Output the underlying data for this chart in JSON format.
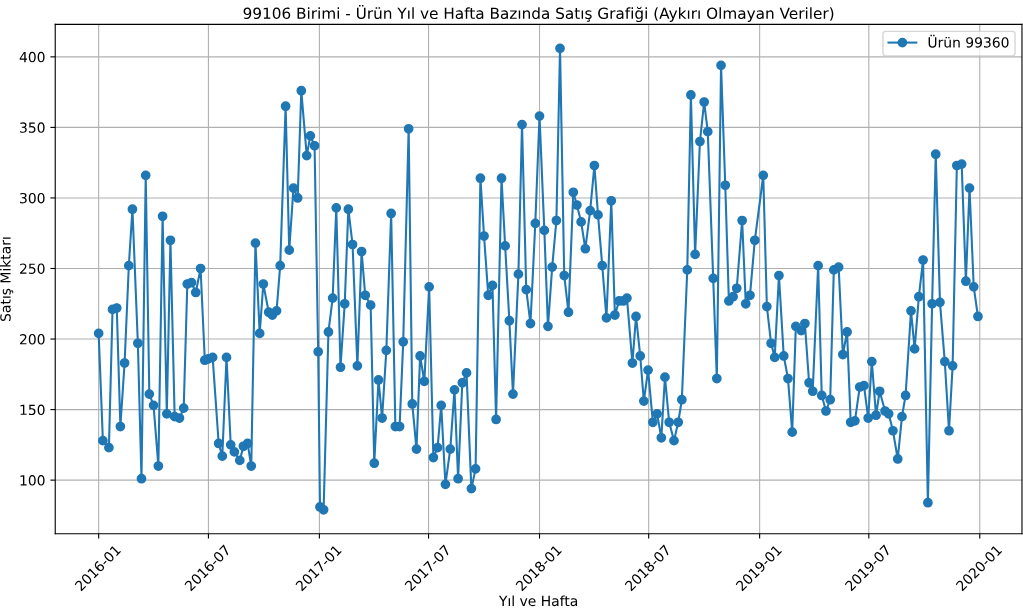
{
  "chart_data": {
    "type": "line",
    "title": "99106 Birimi - Ürün Yıl ve Hafta Bazında Satış Grafiği (Aykırı Olmayan Veriler)",
    "xlabel": "Yıl ve Hafta",
    "ylabel": "Satış Miktarı",
    "x": [
      "2016-01-01",
      "2016-01-08",
      "2016-01-18",
      "2016-01-24",
      "2016-01-31",
      "2016-02-06",
      "2016-02-13",
      "2016-02-20",
      "2016-02-26",
      "2016-03-06",
      "2016-03-12",
      "2016-03-19",
      "2016-03-25",
      "2016-04-01",
      "2016-04-09",
      "2016-04-16",
      "2016-04-23",
      "2016-04-29",
      "2016-05-06",
      "2016-05-14",
      "2016-05-21",
      "2016-05-27",
      "2016-06-03",
      "2016-06-10",
      "2016-06-18",
      "2016-06-25",
      "2016-07-01",
      "2016-07-08",
      "2016-07-18",
      "2016-07-24",
      "2016-07-31",
      "2016-08-07",
      "2016-08-13",
      "2016-08-22",
      "2016-08-28",
      "2016-09-04",
      "2016-09-10",
      "2016-09-17",
      "2016-09-24",
      "2016-09-30",
      "2016-10-09",
      "2016-10-15",
      "2016-10-22",
      "2016-10-28",
      "2016-11-06",
      "2016-11-12",
      "2016-11-19",
      "2016-11-26",
      "2016-12-02",
      "2016-12-11",
      "2016-12-17",
      "2016-12-24",
      "2016-12-30",
      "2017-01-02",
      "2017-01-08",
      "2017-01-16",
      "2017-01-23",
      "2017-01-29",
      "2017-02-05",
      "2017-02-12",
      "2017-02-18",
      "2017-02-25",
      "2017-03-05",
      "2017-03-12",
      "2017-03-18",
      "2017-03-27",
      "2017-04-02",
      "2017-04-09",
      "2017-04-15",
      "2017-04-22",
      "2017-04-30",
      "2017-05-07",
      "2017-05-14",
      "2017-05-20",
      "2017-05-29",
      "2017-06-04",
      "2017-06-11",
      "2017-06-17",
      "2017-06-24",
      "2017-07-02",
      "2017-07-09",
      "2017-07-16",
      "2017-07-22",
      "2017-07-29",
      "2017-08-06",
      "2017-08-13",
      "2017-08-19",
      "2017-08-26",
      "2017-09-02",
      "2017-09-10",
      "2017-09-17",
      "2017-09-25",
      "2017-10-01",
      "2017-10-08",
      "2017-10-15",
      "2017-10-21",
      "2017-10-30",
      "2017-11-05",
      "2017-11-12",
      "2017-11-18",
      "2017-11-27",
      "2017-12-03",
      "2017-12-10",
      "2017-12-17",
      "2017-12-25",
      "2018-01-01",
      "2018-01-09",
      "2018-01-15",
      "2018-01-22",
      "2018-01-29",
      "2018-02-04",
      "2018-02-11",
      "2018-02-18",
      "2018-02-26",
      "2018-03-04",
      "2018-03-11",
      "2018-03-18",
      "2018-03-26",
      "2018-04-02",
      "2018-04-08",
      "2018-04-15",
      "2018-04-22",
      "2018-04-30",
      "2018-05-06",
      "2018-05-13",
      "2018-05-20",
      "2018-05-26",
      "2018-06-04",
      "2018-06-10",
      "2018-06-17",
      "2018-06-23",
      "2018-06-30",
      "2018-07-08",
      "2018-07-15",
      "2018-07-22",
      "2018-07-28",
      "2018-08-04",
      "2018-08-12",
      "2018-08-19",
      "2018-08-25",
      "2018-09-03",
      "2018-09-09",
      "2018-09-16",
      "2018-09-24",
      "2018-10-01",
      "2018-10-07",
      "2018-10-16",
      "2018-10-22",
      "2018-10-29",
      "2018-11-05",
      "2018-11-11",
      "2018-11-18",
      "2018-11-24",
      "2018-12-03",
      "2018-12-09",
      "2018-12-16",
      "2018-12-24",
      "2019-01-07",
      "2019-01-13",
      "2019-01-20",
      "2019-01-26",
      "2019-02-02",
      "2019-02-10",
      "2019-02-17",
      "2019-02-24",
      "2019-03-02",
      "2019-03-11",
      "2019-03-17",
      "2019-03-24",
      "2019-03-30",
      "2019-04-08",
      "2019-04-14",
      "2019-04-21",
      "2019-04-28",
      "2019-05-04",
      "2019-05-12",
      "2019-05-19",
      "2019-05-26",
      "2019-06-01",
      "2019-06-08",
      "2019-06-16",
      "2019-06-23",
      "2019-06-30",
      "2019-07-06",
      "2019-07-13",
      "2019-07-19",
      "2019-07-28",
      "2019-08-03",
      "2019-08-10",
      "2019-08-18",
      "2019-08-25",
      "2019-08-31",
      "2019-09-09",
      "2019-09-15",
      "2019-09-22",
      "2019-09-29",
      "2019-10-07",
      "2019-10-14",
      "2019-10-20",
      "2019-10-27",
      "2019-11-04",
      "2019-11-11",
      "2019-11-17",
      "2019-11-24",
      "2019-12-02",
      "2019-12-09",
      "2019-12-15",
      "2019-12-22",
      "2019-12-29"
    ],
    "series": [
      {
        "name": "Ürün 99360",
        "color": "#1f77b4",
        "values": [
          204,
          128,
          123,
          221,
          222,
          138,
          183,
          252,
          292,
          197,
          101,
          316,
          161,
          153,
          110,
          287,
          147,
          270,
          145,
          144,
          151,
          239,
          240,
          233,
          250,
          185,
          186,
          187,
          126,
          117,
          187,
          125,
          120,
          114,
          124,
          126,
          110,
          268,
          204,
          239,
          219,
          217,
          220,
          252,
          365,
          263,
          307,
          300,
          376,
          330,
          344,
          337,
          191,
          81,
          79,
          205,
          229,
          293,
          180,
          225,
          292,
          267,
          181,
          262,
          231,
          224,
          112,
          171,
          144,
          192,
          289,
          138,
          138,
          198,
          349,
          154,
          122,
          188,
          170,
          237,
          116,
          123,
          153,
          97,
          122,
          164,
          101,
          169,
          176,
          94,
          108,
          314,
          273,
          231,
          238,
          143,
          314,
          266,
          213,
          161,
          246,
          352,
          235,
          211,
          282,
          358,
          277,
          209,
          251,
          284,
          406,
          245,
          219,
          304,
          295,
          283,
          264,
          291,
          323,
          288,
          252,
          215,
          298,
          217,
          227,
          227,
          229,
          183,
          216,
          188,
          156,
          178,
          141,
          147,
          130,
          173,
          141,
          128,
          141,
          157,
          249,
          373,
          260,
          340,
          368,
          347,
          243,
          172,
          394,
          309,
          227,
          230,
          236,
          284,
          225,
          231,
          270,
          316,
          223,
          197,
          187,
          245,
          188,
          172,
          134,
          209,
          206,
          211,
          169,
          163,
          252,
          160,
          149,
          157,
          249,
          251,
          189,
          205,
          141,
          142,
          166,
          167,
          144,
          184,
          146,
          163,
          149,
          147,
          135,
          115,
          145,
          160,
          220,
          193,
          230,
          256,
          84,
          225,
          331,
          226,
          184,
          135,
          181,
          323,
          324,
          241,
          307,
          237,
          216
        ]
      }
    ],
    "xlim": [
      "2015-10-21",
      "2020-03-11"
    ],
    "xticks": [
      "2016-01",
      "2016-07",
      "2017-01",
      "2017-07",
      "2018-01",
      "2018-07",
      "2019-01",
      "2019-07",
      "2020-01"
    ],
    "ylim": [
      62,
      423
    ],
    "yticks": [
      100,
      150,
      200,
      250,
      300,
      350,
      400
    ],
    "grid": true,
    "legend": "top right",
    "marker": "circle",
    "line_style": "solid"
  }
}
